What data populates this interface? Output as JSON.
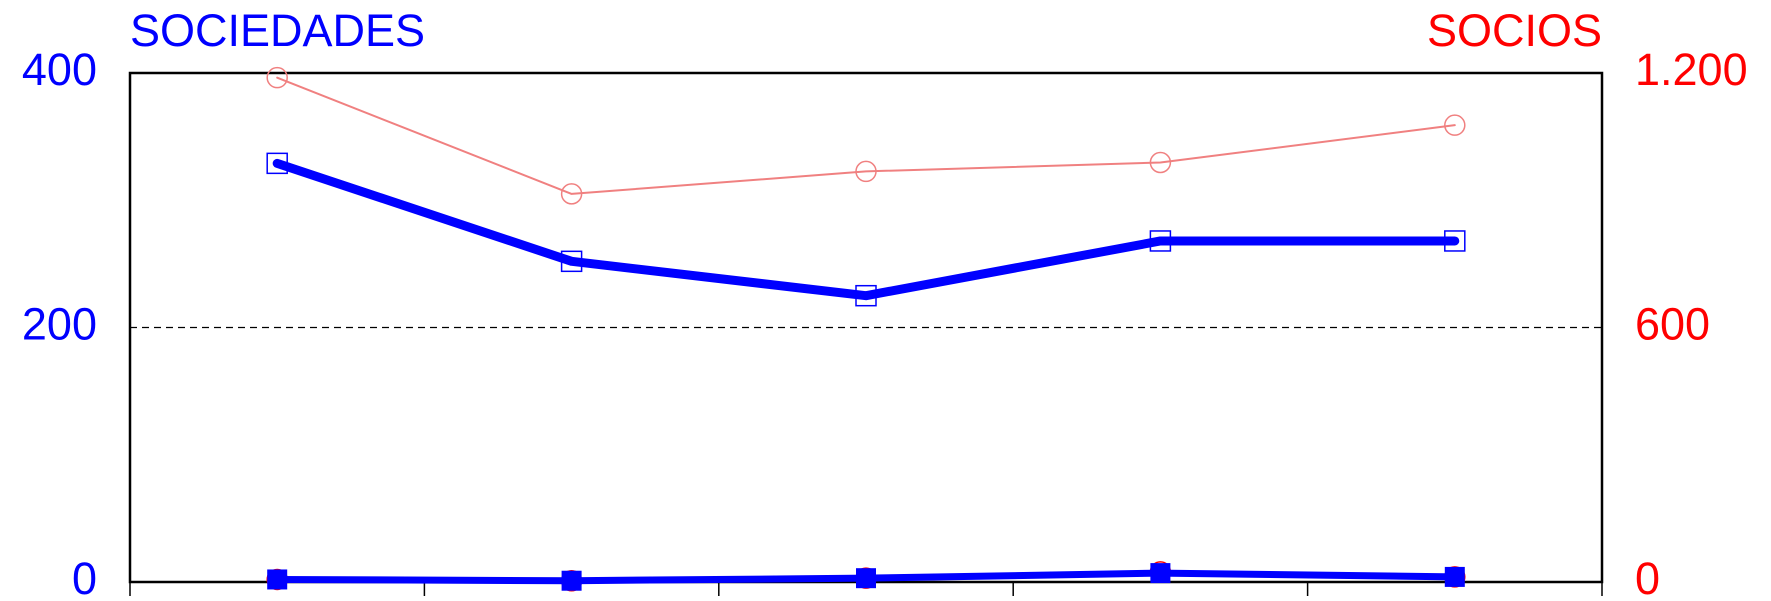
{
  "chart_data": {
    "type": "line",
    "y_label": "SOCIEDADES",
    "y2_label": "SOCIOS",
    "categories": [
      null,
      null,
      null,
      null,
      null
    ],
    "ylim": [
      0,
      400
    ],
    "yticks": [
      0,
      200,
      400
    ],
    "y2lim": [
      0,
      1200
    ],
    "y2ticks": [
      0,
      600,
      {
        "value": 1200,
        "label": "1.200"
      }
    ],
    "grid": true,
    "series": [
      {
        "color": "#0000ff",
        "marker": "square-open",
        "values": [
          329,
          252,
          225,
          268,
          268
        ]
      },
      {
        "color": "#f08080",
        "marker": "circle-open",
        "axis": "y2",
        "values": [
          1189,
          915,
          968,
          989,
          1077
        ]
      },
      {
        "color": "#ff0000",
        "marker": "circle-open",
        "axis": "y2",
        "values": [
          6,
          3,
          9,
          24,
          12
        ]
      },
      {
        "color": "#0000ff",
        "marker": "square",
        "values": [
          2,
          1,
          3,
          7,
          4
        ]
      }
    ]
  }
}
